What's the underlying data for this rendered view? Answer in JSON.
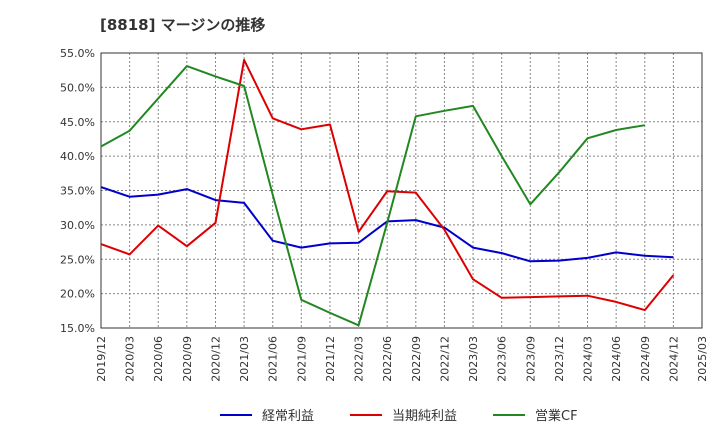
{
  "chart_data": {
    "type": "line",
    "title": "[8818]  マージンの推移",
    "xlabel": "",
    "ylabel": "",
    "ylim": [
      15,
      55
    ],
    "y_ticks": [
      "15.0%",
      "20.0%",
      "25.0%",
      "30.0%",
      "35.0%",
      "40.0%",
      "45.0%",
      "50.0%",
      "55.0%"
    ],
    "categories": [
      "2019/12",
      "2020/03",
      "2020/06",
      "2020/09",
      "2020/12",
      "2021/03",
      "2021/06",
      "2021/09",
      "2021/12",
      "2022/03",
      "2022/06",
      "2022/09",
      "2022/12",
      "2023/03",
      "2023/06",
      "2023/09",
      "2023/12",
      "2024/03",
      "2024/06",
      "2024/09",
      "2024/12",
      "2025/03"
    ],
    "grid": true,
    "legend_position": "bottom",
    "series": [
      {
        "name": "経常利益",
        "color": "#0000cc",
        "values": [
          35.5,
          34.1,
          34.4,
          35.2,
          33.6,
          33.2,
          27.7,
          26.7,
          27.3,
          27.4,
          30.5,
          30.7,
          29.6,
          26.7,
          25.9,
          24.7,
          24.8,
          25.2,
          26.0,
          25.5,
          25.3,
          null
        ]
      },
      {
        "name": "当期純利益",
        "color": "#dd0000",
        "values": [
          27.2,
          25.7,
          29.9,
          26.9,
          30.3,
          54.0,
          45.5,
          43.9,
          44.6,
          29.0,
          34.9,
          34.7,
          29.3,
          22.1,
          19.4,
          19.5,
          19.6,
          19.7,
          18.8,
          17.6,
          22.7,
          null
        ]
      },
      {
        "name": "営業CF",
        "color": "#228822",
        "values": [
          41.4,
          43.7,
          48.4,
          53.1,
          51.6,
          50.2,
          34.4,
          19.1,
          17.2,
          15.4,
          30.3,
          45.8,
          46.6,
          47.3,
          40.0,
          33.0,
          37.6,
          42.6,
          43.8,
          44.5,
          null,
          null
        ]
      }
    ]
  }
}
